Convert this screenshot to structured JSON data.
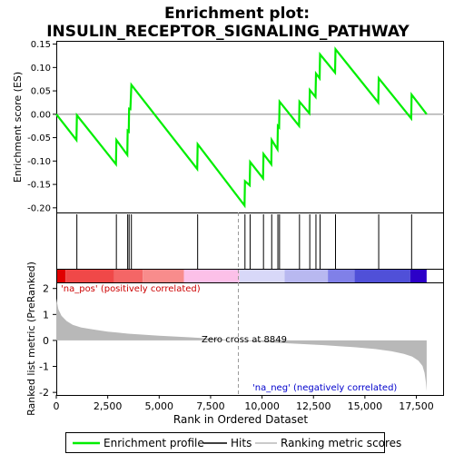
{
  "title_line1": "Enrichment plot:",
  "title_line2": "INSULIN_RECEPTOR_SIGNALING_PATHWAY",
  "chart_data": [
    {
      "type": "line",
      "name": "enrichment-profile",
      "ylabel": "Enrichment score (ES)",
      "xlim": [
        0,
        18800
      ],
      "ylim": [
        -0.21,
        0.155
      ],
      "yticks": [
        -0.2,
        -0.15,
        -0.1,
        -0.05,
        0.0,
        0.05,
        0.1,
        0.15
      ],
      "ytick_labels": [
        "-0.20",
        "-0.15",
        "-0.10",
        "-0.05",
        "0.00",
        "0.05",
        "0.10",
        "0.15"
      ],
      "grid": false,
      "series_color": "#00ee00",
      "points": [
        [
          0,
          0.0
        ],
        [
          980,
          -0.055
        ],
        [
          1000,
          -0.002
        ],
        [
          2900,
          -0.107
        ],
        [
          2920,
          -0.055
        ],
        [
          3450,
          -0.087
        ],
        [
          3470,
          -0.035
        ],
        [
          3520,
          -0.037
        ],
        [
          3540,
          0.012
        ],
        [
          3600,
          0.011
        ],
        [
          3650,
          0.063
        ],
        [
          6850,
          -0.117
        ],
        [
          6870,
          -0.064
        ],
        [
          9150,
          -0.195
        ],
        [
          9170,
          -0.143
        ],
        [
          9400,
          -0.152
        ],
        [
          9420,
          -0.102
        ],
        [
          10050,
          -0.137
        ],
        [
          10070,
          -0.085
        ],
        [
          10450,
          -0.107
        ],
        [
          10470,
          -0.055
        ],
        [
          10750,
          -0.075
        ],
        [
          10770,
          -0.025
        ],
        [
          10830,
          -0.028
        ],
        [
          10850,
          0.027
        ],
        [
          11800,
          -0.025
        ],
        [
          11820,
          0.027
        ],
        [
          12300,
          0.002
        ],
        [
          12320,
          0.052
        ],
        [
          12600,
          0.037
        ],
        [
          12620,
          0.087
        ],
        [
          12800,
          0.077
        ],
        [
          12820,
          0.128
        ],
        [
          13550,
          0.089
        ],
        [
          13570,
          0.139
        ],
        [
          15650,
          0.025
        ],
        [
          15670,
          0.077
        ],
        [
          17250,
          -0.009
        ],
        [
          17270,
          0.042
        ],
        [
          18000,
          0.0
        ]
      ]
    },
    {
      "type": "hits",
      "name": "hits",
      "xlim": [
        0,
        18800
      ],
      "x": [
        1000,
        2920,
        3470,
        3540,
        3650,
        6870,
        9170,
        9420,
        10070,
        10470,
        10770,
        10850,
        11820,
        12320,
        12620,
        12820,
        13570,
        15670,
        17270
      ]
    },
    {
      "type": "heatmap",
      "name": "correlation-bar",
      "xlim": [
        0,
        18800
      ],
      "legend_pos": "'na_pos' (positively correlated)",
      "legend_neg": "'na_neg' (negatively correlated)",
      "segments": [
        {
          "from": 0,
          "to": 450,
          "color": "#e00000"
        },
        {
          "from": 450,
          "to": 2800,
          "color": "#f04848"
        },
        {
          "from": 2800,
          "to": 4200,
          "color": "#f46666"
        },
        {
          "from": 4200,
          "to": 6200,
          "color": "#f88c8c"
        },
        {
          "from": 6200,
          "to": 8900,
          "color": "#fcc0e8"
        },
        {
          "from": 8900,
          "to": 11100,
          "color": "#d8d8f8"
        },
        {
          "from": 11100,
          "to": 13200,
          "color": "#b8b8f0"
        },
        {
          "from": 13200,
          "to": 14500,
          "color": "#8080e8"
        },
        {
          "from": 14500,
          "to": 17200,
          "color": "#5050d8"
        },
        {
          "from": 17200,
          "to": 18000,
          "color": "#2c00c8"
        }
      ]
    },
    {
      "type": "area",
      "name": "ranked-metric",
      "xlabel": "Rank in Ordered Dataset",
      "ylabel": "Ranked list metric (PreRanked)",
      "xlim": [
        0,
        18800
      ],
      "ylim": [
        -2.1,
        2.2
      ],
      "xticks": [
        0,
        2500,
        5000,
        7500,
        10000,
        12500,
        15000,
        17500
      ],
      "xtick_labels": [
        "0",
        "2,500",
        "5,000",
        "7,500",
        "10,000",
        "12,500",
        "15,000",
        "17,500"
      ],
      "yticks": [
        -2,
        -1,
        0,
        1,
        2
      ],
      "ytick_labels": [
        "-2",
        "-1",
        "0",
        "1",
        "2"
      ],
      "zero_cross_label": "Zero cross at 8849",
      "zero_cross": 8849,
      "fill_color": "#b8b8b8",
      "points": [
        [
          0,
          1.62
        ],
        [
          100,
          1.2
        ],
        [
          250,
          0.95
        ],
        [
          500,
          0.75
        ],
        [
          800,
          0.6
        ],
        [
          1200,
          0.5
        ],
        [
          1800,
          0.42
        ],
        [
          2500,
          0.34
        ],
        [
          3500,
          0.26
        ],
        [
          5000,
          0.18
        ],
        [
          6500,
          0.12
        ],
        [
          7800,
          0.06
        ],
        [
          8849,
          0.0
        ],
        [
          10000,
          -0.06
        ],
        [
          11500,
          -0.12
        ],
        [
          13000,
          -0.18
        ],
        [
          14500,
          -0.26
        ],
        [
          15500,
          -0.33
        ],
        [
          16300,
          -0.42
        ],
        [
          16900,
          -0.52
        ],
        [
          17300,
          -0.62
        ],
        [
          17600,
          -0.78
        ],
        [
          17800,
          -0.98
        ],
        [
          17900,
          -1.25
        ],
        [
          17960,
          -1.6
        ],
        [
          18000,
          -1.95
        ]
      ]
    }
  ],
  "legend": {
    "items": [
      {
        "label": "Enrichment profile",
        "color": "#00ee00"
      },
      {
        "label": "Hits",
        "color": "#000000"
      },
      {
        "label": "Ranking metric scores",
        "color": "#b8b8b8"
      }
    ]
  }
}
